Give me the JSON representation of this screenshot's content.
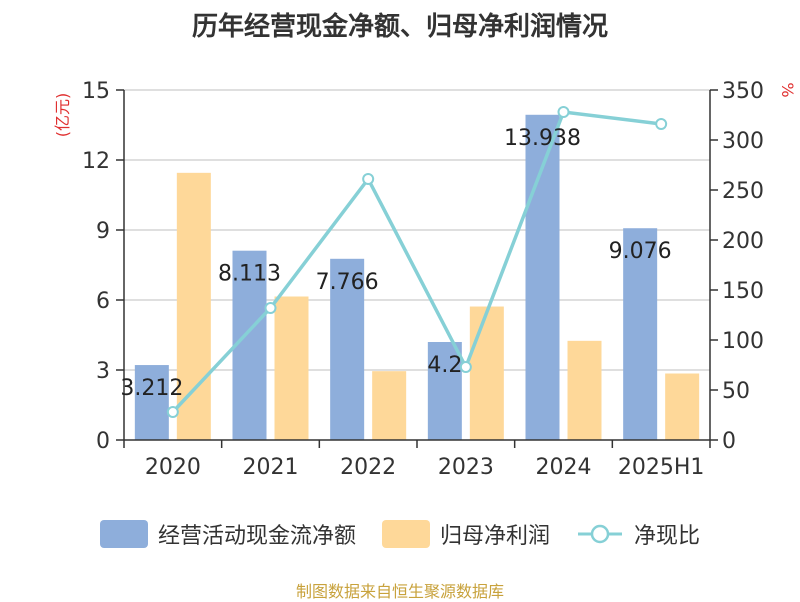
{
  "chart_data": {
    "type": "bar",
    "title": "历年经营现金净额、归母净利润情况",
    "categories": [
      "2020",
      "2021",
      "2022",
      "2023",
      "2024",
      "2025H1"
    ],
    "series": [
      {
        "name": "经营活动现金流净额",
        "type": "bar",
        "axis": "left",
        "color": "#8eaedb",
        "values": [
          3.212,
          8.113,
          7.766,
          4.2,
          13.938,
          9.076
        ],
        "labels": [
          "3.212",
          "8.113",
          "7.766",
          "4.2",
          "13.938",
          "9.076"
        ]
      },
      {
        "name": "归母净利润",
        "type": "bar",
        "axis": "left",
        "color": "#fed899",
        "values": [
          11.45,
          6.15,
          2.95,
          5.72,
          4.25,
          2.85
        ]
      },
      {
        "name": "净现比",
        "type": "line",
        "axis": "right",
        "color": "#86d0d6",
        "values": [
          28,
          132,
          261,
          73,
          328,
          316
        ]
      }
    ],
    "y_left": {
      "label": "(亿元)",
      "ticks": [
        "0",
        "3",
        "6",
        "9",
        "12",
        "15"
      ],
      "range": [
        0,
        15
      ]
    },
    "y_right": {
      "label": "%",
      "ticks": [
        "0",
        "50",
        "100",
        "150",
        "200",
        "250",
        "300",
        "350"
      ],
      "range": [
        0,
        350
      ]
    },
    "grid": true,
    "legend_position": "bottom"
  },
  "source": "制图数据来自恒生聚源数据库"
}
